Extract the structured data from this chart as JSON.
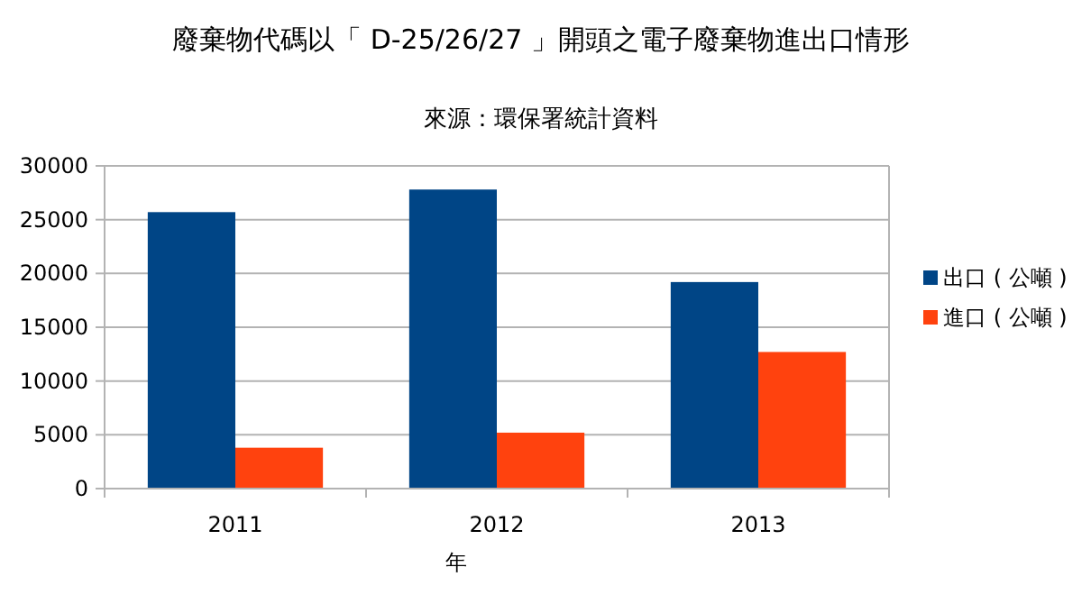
{
  "chart_data": {
    "type": "bar",
    "title": "廢棄物代碼以「 D-25/26/27 」開頭之電子廢棄物進出口情形",
    "subtitle": "來源：環保署統計資料",
    "xlabel": "年",
    "categories": [
      "2011",
      "2012",
      "2013"
    ],
    "series": [
      {
        "name": "出口 ( 公噸 )",
        "color": "#004586",
        "values": [
          25700,
          27800,
          19200
        ]
      },
      {
        "name": "進口 ( 公噸 )",
        "color": "#ff420e",
        "values": [
          3800,
          5200,
          12700
        ]
      }
    ],
    "ylim": [
      0,
      30000
    ],
    "yticks": [
      0,
      5000,
      10000,
      15000,
      20000,
      25000,
      30000
    ],
    "grid": "y",
    "legend": "right"
  }
}
